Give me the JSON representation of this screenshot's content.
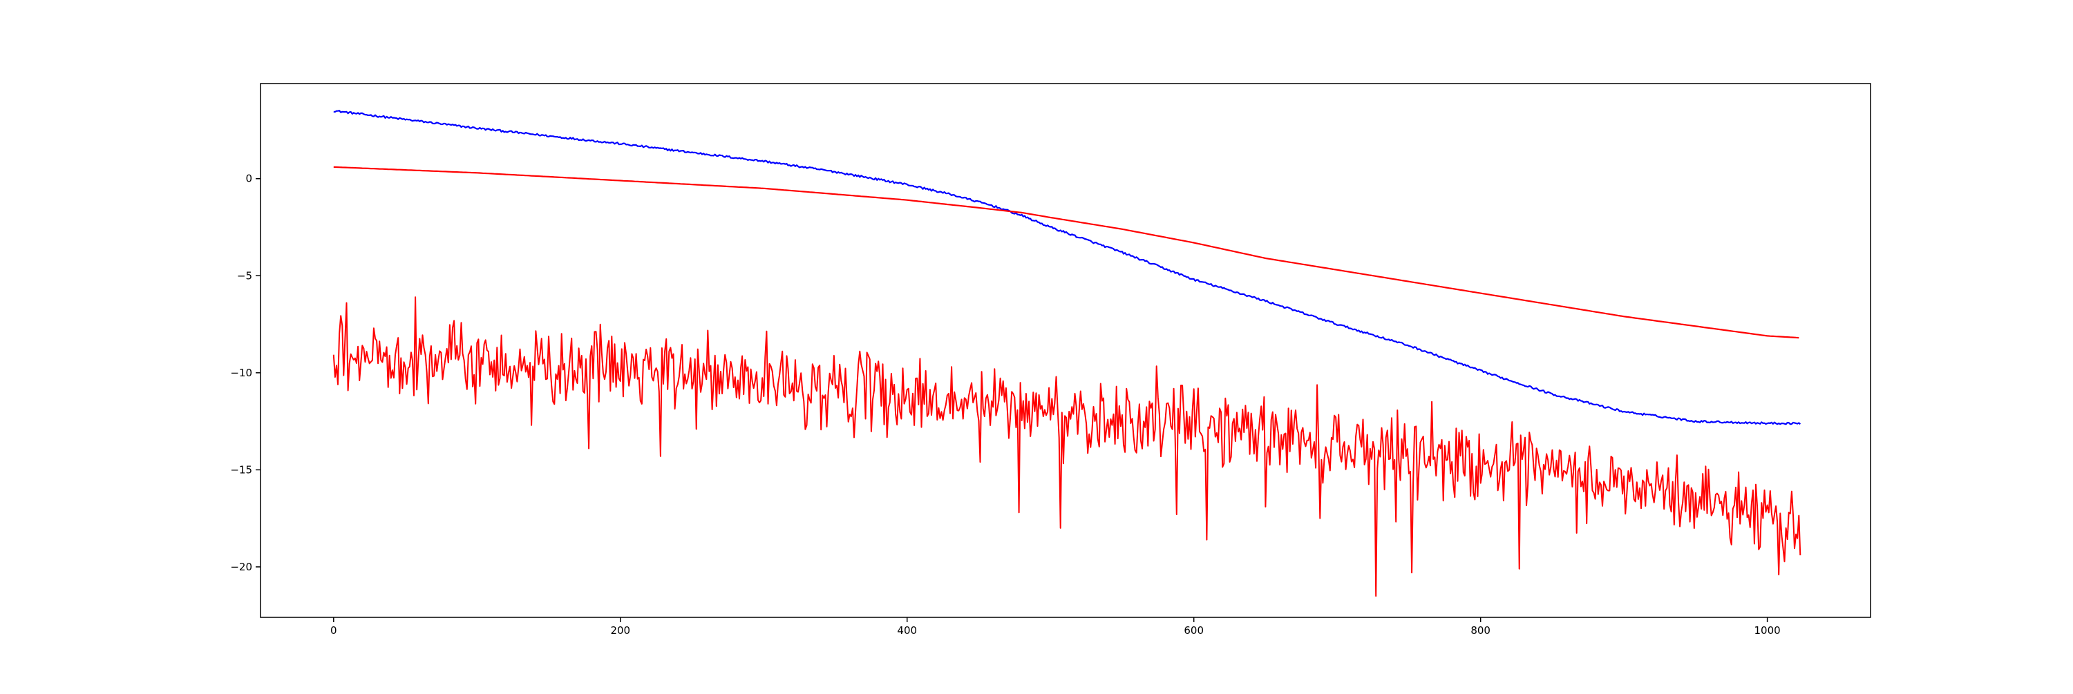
{
  "chart_data": {
    "type": "line",
    "title": "",
    "xlabel": "",
    "ylabel": "",
    "xlim": [
      -51,
      1072
    ],
    "ylim": [
      -22.6,
      4.9
    ],
    "xticks": [
      0,
      200,
      400,
      600,
      800,
      1000
    ],
    "yticks": [
      0,
      -5,
      -10,
      -15,
      -20
    ],
    "xtick_labels": [
      "0",
      "200",
      "400",
      "600",
      "800",
      "1000"
    ],
    "ytick_labels": [
      "0",
      "−5",
      "−10",
      "−15",
      "−20"
    ],
    "grid": false,
    "legend": "none",
    "n_points": 1024,
    "series": [
      {
        "color": "#0000ff",
        "style": "smooth with small jitter",
        "x": [
          0,
          100,
          200,
          300,
          350,
          400,
          430,
          460,
          480,
          500,
          550,
          600,
          650,
          700,
          750,
          800,
          850,
          900,
          950,
          1000,
          1023
        ],
        "y": [
          3.5,
          2.6,
          1.8,
          0.9,
          0.35,
          -0.3,
          -0.8,
          -1.4,
          -1.9,
          -2.5,
          -3.8,
          -5.2,
          -6.3,
          -7.5,
          -8.6,
          -9.9,
          -11.1,
          -12.0,
          -12.5,
          -12.6,
          -12.6
        ]
      },
      {
        "color": "#ff0000",
        "style": "smooth",
        "x": [
          0,
          100,
          200,
          300,
          400,
          450,
          480,
          500,
          550,
          600,
          650,
          700,
          750,
          800,
          850,
          900,
          950,
          980,
          1000,
          1023
        ],
        "y": [
          0.6,
          0.3,
          -0.1,
          -0.5,
          -1.1,
          -1.5,
          -1.75,
          -2.0,
          -2.6,
          -3.3,
          -4.1,
          -4.7,
          -5.3,
          -5.9,
          -6.5,
          -7.1,
          -7.6,
          -7.9,
          -8.1,
          -8.2
        ]
      },
      {
        "color": "#ff0000",
        "style": "noisy",
        "x": [
          0,
          50,
          100,
          200,
          300,
          400,
          500,
          600,
          700,
          800,
          900,
          1000,
          1023
        ],
        "y": [
          -9.3,
          -9.1,
          -9.4,
          -9.8,
          -10.5,
          -11.2,
          -12.0,
          -12.7,
          -13.6,
          -14.6,
          -15.8,
          -17.2,
          -17.8
        ],
        "noise_std": 0.95,
        "dips": [
          [
            138,
            -12.7
          ],
          [
            178,
            -13.9
          ],
          [
            228,
            -14.3
          ],
          [
            451,
            -14.6
          ],
          [
            478,
            -17.2
          ],
          [
            507,
            -18.0
          ],
          [
            588,
            -17.3
          ],
          [
            609,
            -18.6
          ],
          [
            650,
            -16.9
          ],
          [
            688,
            -17.5
          ],
          [
            727,
            -21.5
          ],
          [
            752,
            -20.3
          ],
          [
            827,
            -20.1
          ],
          [
            1008,
            -20.4
          ],
          [
            1023,
            -19.4
          ]
        ],
        "peaks": [
          [
            9,
            -6.4
          ],
          [
            57,
            -6.1
          ]
        ]
      }
    ]
  }
}
